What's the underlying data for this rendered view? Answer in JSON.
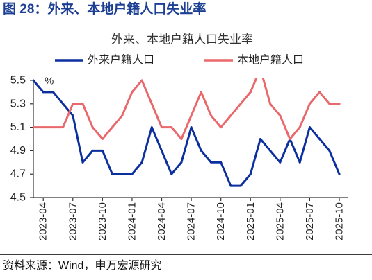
{
  "figure_caption": "图 28：外来、本地户籍人口失业率",
  "source_note": "资料来源：Wind，申万宏源研究",
  "chart_data": {
    "type": "line",
    "title": "外来、本地户籍人口失业率",
    "ylabel": "%",
    "xlabel": "",
    "ylim": [
      4.5,
      5.5
    ],
    "yticks": [
      5.5,
      5.3,
      5.1,
      4.9,
      4.7,
      4.5
    ],
    "grid": false,
    "legend_position": "top",
    "x": [
      "2023-03",
      "2023-04",
      "2023-05",
      "2023-06",
      "2023-07",
      "2023-08",
      "2023-09",
      "2023-10",
      "2023-11",
      "2023-12",
      "2024-01",
      "2024-02",
      "2024-03",
      "2024-04",
      "2024-05",
      "2024-06",
      "2024-07",
      "2024-08",
      "2024-09",
      "2024-10",
      "2024-11",
      "2024-12",
      "2025-01",
      "2025-02",
      "2025-03",
      "2025-04",
      "2025-05",
      "2025-06",
      "2025-07",
      "2025-08",
      "2025-09",
      "2025-10"
    ],
    "xticks": [
      "2023-04",
      "2023-07",
      "2023-10",
      "2024-01",
      "2024-04",
      "2024-07",
      "2024-10",
      "2025-01",
      "2025-04",
      "2025-07",
      "2025-10"
    ],
    "series": [
      {
        "name": "外来户籍人口",
        "color": "#0b2f9e",
        "values": [
          5.5,
          5.4,
          5.4,
          5.3,
          5.2,
          4.8,
          4.9,
          4.9,
          4.7,
          4.7,
          4.7,
          4.8,
          5.1,
          4.9,
          4.7,
          4.8,
          5.1,
          4.9,
          4.8,
          4.8,
          4.6,
          4.6,
          4.7,
          5.0,
          4.9,
          4.8,
          5.0,
          4.8,
          5.1,
          5.0,
          4.9,
          4.7
        ]
      },
      {
        "name": "本地户籍人口",
        "color": "#e8686b",
        "values": [
          5.1,
          5.1,
          5.1,
          5.1,
          5.3,
          5.3,
          5.1,
          5.0,
          5.1,
          5.2,
          5.4,
          5.5,
          5.3,
          5.1,
          5.1,
          5.0,
          5.2,
          5.4,
          5.2,
          5.1,
          5.2,
          5.3,
          5.4,
          5.6,
          5.3,
          5.2,
          5.0,
          5.1,
          5.3,
          5.4,
          5.3,
          5.3
        ]
      }
    ]
  }
}
